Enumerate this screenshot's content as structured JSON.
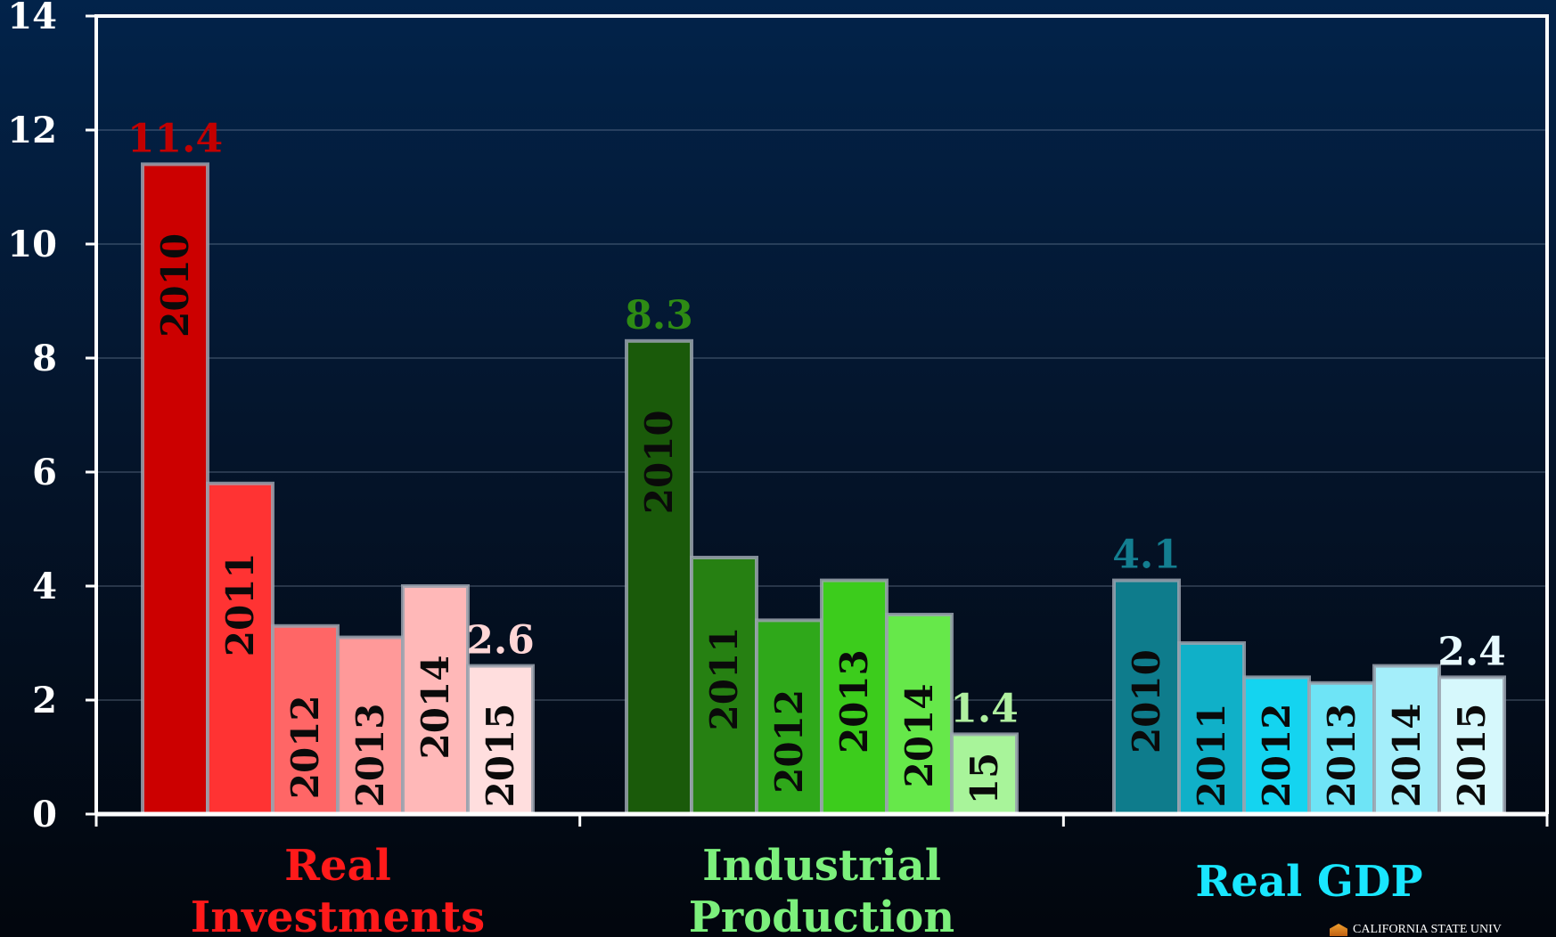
{
  "chart_data": {
    "type": "bar",
    "ylim": [
      0,
      14
    ],
    "y_ticks": [
      "0",
      "2",
      "4",
      "6",
      "8",
      "10",
      "12",
      "14"
    ],
    "grid": true,
    "groups": [
      {
        "label": "Real\nInvestments",
        "label_color": "#ff1a1a",
        "value_label_color": "#c20000",
        "bars": [
          {
            "year": "2010",
            "value": 11.4,
            "color": "#cc0000"
          },
          {
            "year": "2011",
            "value": 5.8,
            "color": "#ff3333"
          },
          {
            "year": "2012",
            "value": 3.3,
            "color": "#ff6666"
          },
          {
            "year": "2013",
            "value": 3.1,
            "color": "#ff9999"
          },
          {
            "year": "2014",
            "value": 4.0,
            "color": "#ffb8b8"
          },
          {
            "year": "2015",
            "value": 2.6,
            "color": "#ffdede"
          }
        ],
        "value_labels": [
          {
            "bar": 0,
            "text": "11.4",
            "color": "#c20000"
          },
          {
            "bar": 5,
            "text": "2.6",
            "color": "#ffd6d6"
          }
        ]
      },
      {
        "label": "Industrial\nProduction",
        "label_color": "#7cf07c",
        "bars": [
          {
            "year": "2010",
            "value": 8.3,
            "color": "#1a5a0a"
          },
          {
            "year": "2011",
            "value": 4.5,
            "color": "#268012"
          },
          {
            "year": "2012",
            "value": 3.4,
            "color": "#2fa81a"
          },
          {
            "year": "2013",
            "value": 4.1,
            "color": "#3ccc1c"
          },
          {
            "year": "2014",
            "value": 3.5,
            "color": "#66e84a"
          },
          {
            "year": "15",
            "value": 1.4,
            "color": "#a8f49a"
          }
        ],
        "value_labels": [
          {
            "bar": 0,
            "text": "8.3",
            "color": "#2e8b14"
          },
          {
            "bar": 5,
            "text": "1.4",
            "color": "#b0f0a0"
          }
        ]
      },
      {
        "label": "Real GDP",
        "label_color": "#19e6ff",
        "bars": [
          {
            "year": "2010",
            "value": 4.1,
            "color": "#0e7c8c"
          },
          {
            "year": "2011",
            "value": 3.0,
            "color": "#10b0c8"
          },
          {
            "year": "2012",
            "value": 2.4,
            "color": "#14d4f0"
          },
          {
            "year": "2013",
            "value": 2.3,
            "color": "#6ee4f6"
          },
          {
            "year": "2014",
            "value": 2.6,
            "color": "#a4eefa"
          },
          {
            "year": "2015",
            "value": 2.4,
            "color": "#d6f8fc"
          }
        ],
        "value_labels": [
          {
            "bar": 0,
            "text": "4.1",
            "color": "#137e90"
          },
          {
            "bar": 5,
            "text": "2.4",
            "color": "#e8fbff"
          }
        ]
      }
    ]
  },
  "footer": {
    "logo_text": "CALIFORNIA STATE UNIV"
  }
}
